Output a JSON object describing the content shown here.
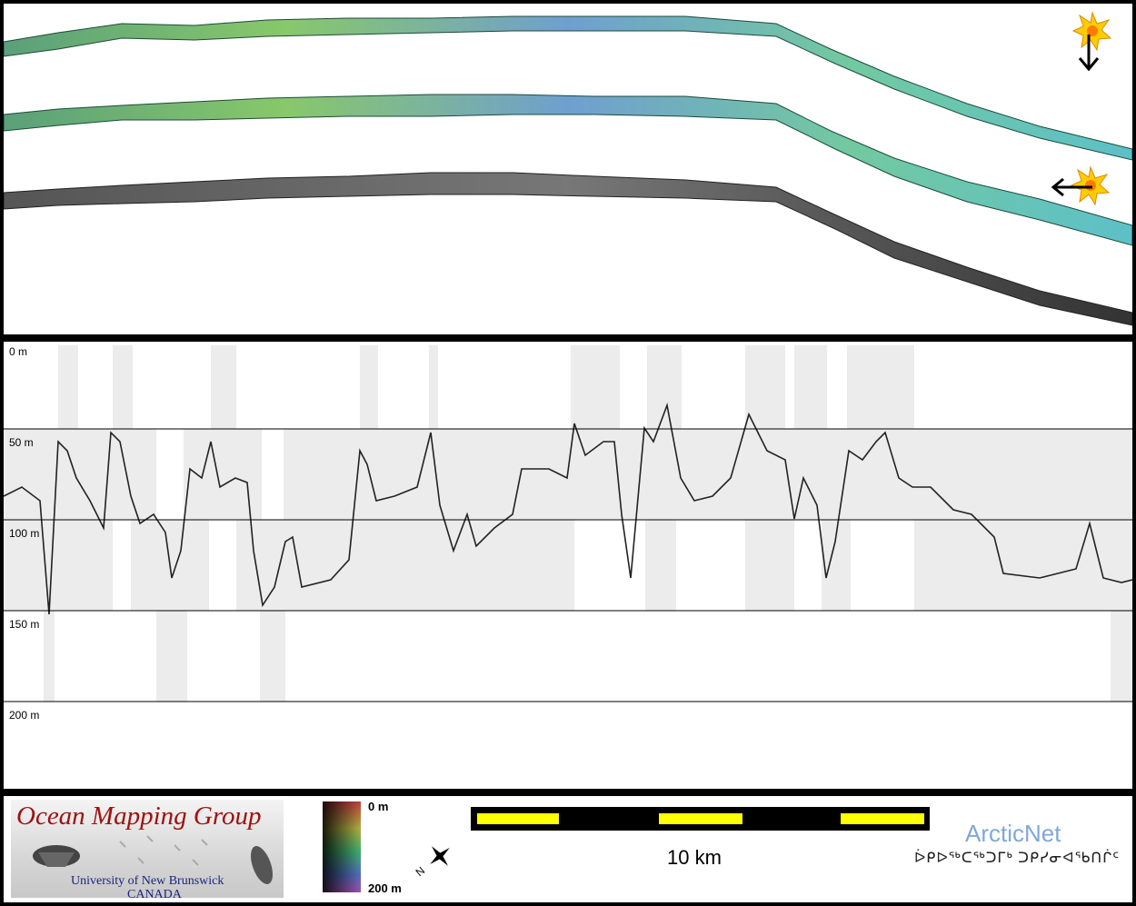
{
  "profile": {
    "depth_labels": [
      "0 m",
      "50 m",
      "100 m",
      "150 m",
      "200 m"
    ]
  },
  "legend": {
    "logo_title": "Ocean Mapping Group",
    "logo_university": "University of New Brunswick",
    "logo_country": "CANADA",
    "colorbar_top": "0 m",
    "colorbar_bottom": "200 m",
    "scale_label": "10 km",
    "arcticnet_name": "ArcticNet",
    "arcticnet_inuktitut": "ᐆᑭᐅᖅᑕᖅᑐᒥᒃ ᑐᑭᓯᓂᐊᖃᑎᒌᑦ",
    "north_arrow_letter": "N"
  },
  "colors": {
    "logo_title": "#a01010",
    "logo_text": "#1a237e",
    "scale_yellow": "#ffff00",
    "arcticnet_blue": "#7fa8d8",
    "swath_fill": "#6bbf9a",
    "sun": "#ffcc00"
  },
  "icons": {
    "sun_top": "sun-icon",
    "sun_middle": "sun-icon",
    "arrow_down": "arrow-down-icon",
    "arrow_left": "arrow-left-icon"
  }
}
